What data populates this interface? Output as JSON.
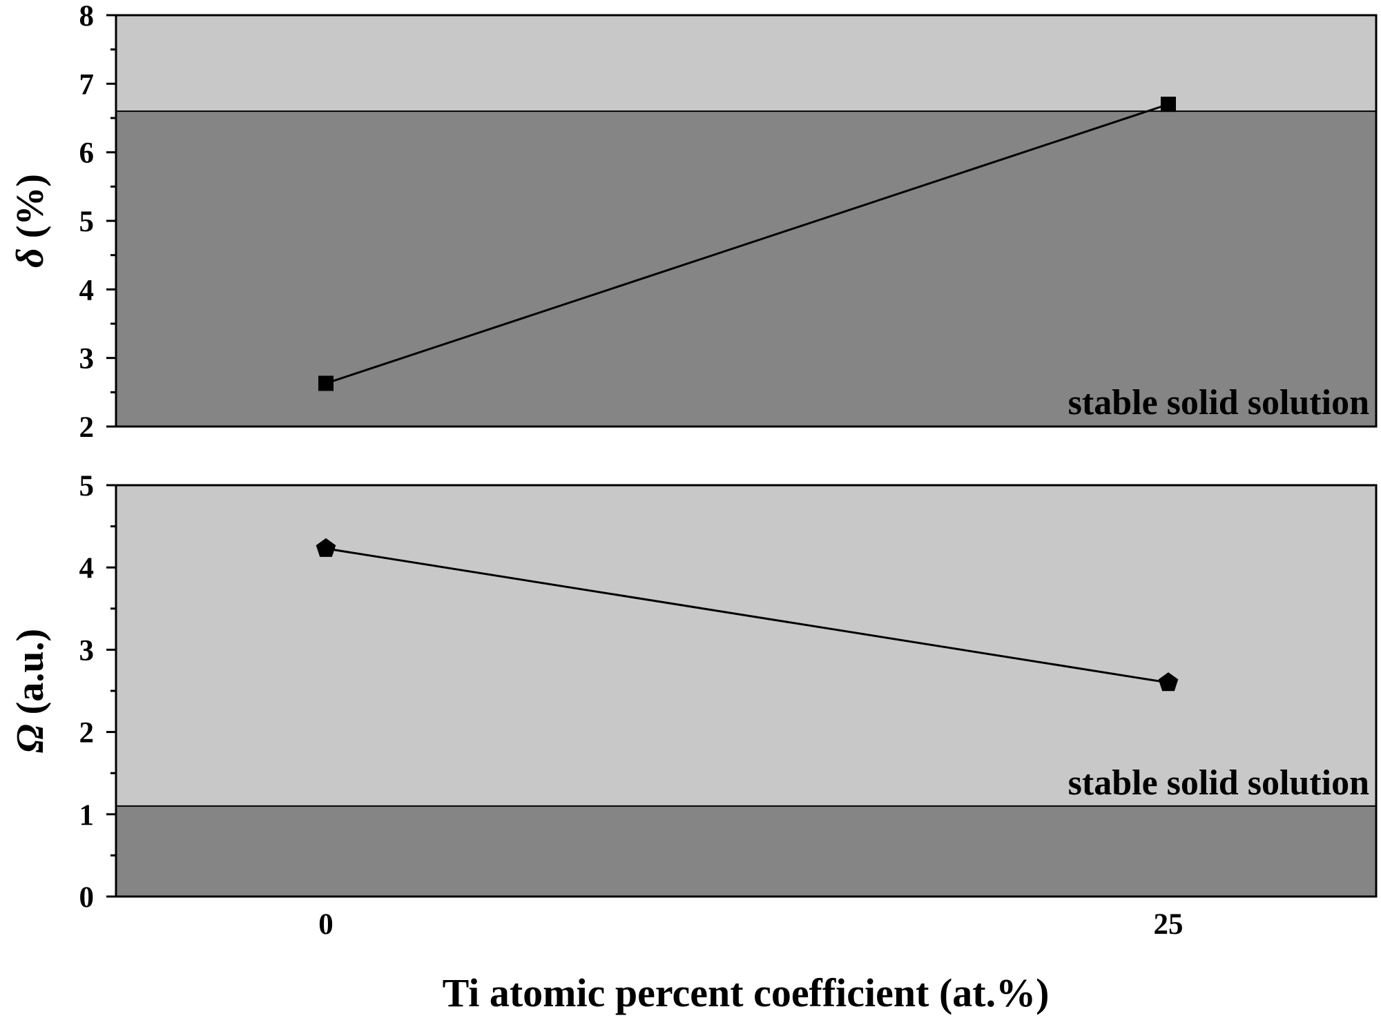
{
  "chart_data": [
    {
      "type": "line",
      "panel": "top",
      "x": [
        0,
        25
      ],
      "x_tick_labels": [
        "0",
        "25"
      ],
      "series": [
        {
          "name": "delta",
          "values": [
            2.63,
            6.7
          ],
          "marker": "square"
        }
      ],
      "ylabel_symbol": "δ",
      "ylabel_rest": " (%)",
      "ylim": [
        2,
        8
      ],
      "yticks": [
        "2",
        "3",
        "4",
        "5",
        "6",
        "7",
        "8"
      ],
      "region": {
        "threshold": 6.6,
        "label": "stable solid solution",
        "side": "below"
      },
      "colors": {
        "stable": "#858585",
        "unstable": "#c8c8c8",
        "line": "#000000"
      }
    },
    {
      "type": "line",
      "panel": "bottom",
      "x": [
        0,
        25
      ],
      "x_tick_labels": [
        "0",
        "25"
      ],
      "series": [
        {
          "name": "omega",
          "values": [
            4.23,
            2.6
          ],
          "marker": "pentagon"
        }
      ],
      "ylabel_symbol": "Ω",
      "ylabel_rest": " (a.u.)",
      "ylim": [
        0,
        5
      ],
      "yticks": [
        "0",
        "1",
        "2",
        "3",
        "4",
        "5"
      ],
      "region": {
        "threshold": 1.1,
        "label": "stable solid solution",
        "side": "above"
      },
      "colors": {
        "stable": "#c8c8c8",
        "unstable": "#858585",
        "line": "#000000"
      }
    }
  ],
  "xlabel": "Ti atomic percent coefficient (at.%)"
}
